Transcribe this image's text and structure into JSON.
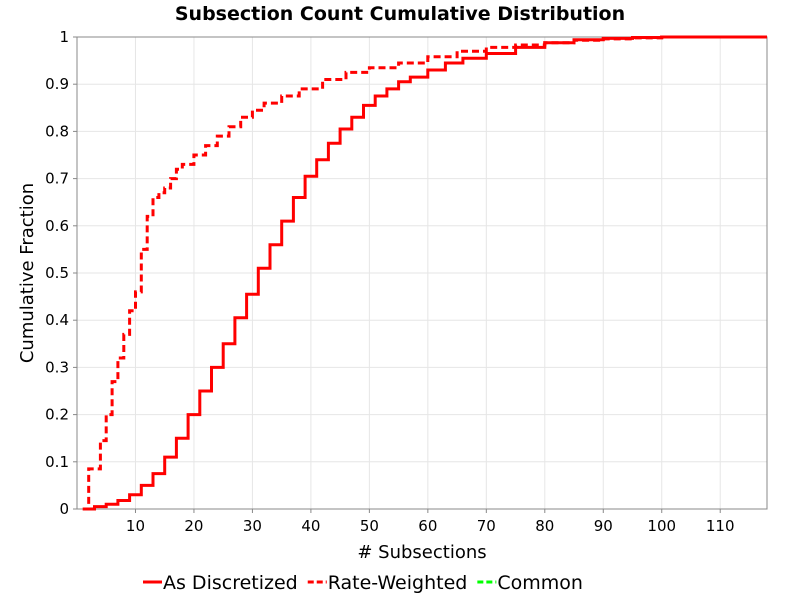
{
  "chart_data": {
    "type": "line",
    "title": "Subsection Count Cumulative Distribution",
    "xlabel": "# Subsections",
    "ylabel": "Cumulative Fraction",
    "xlim": [
      0,
      118
    ],
    "ylim": [
      0,
      1
    ],
    "x_ticks": [
      10,
      20,
      30,
      40,
      50,
      60,
      70,
      80,
      90,
      100,
      110
    ],
    "y_ticks": [
      0,
      0.1,
      0.2,
      0.3,
      0.4,
      0.5,
      0.6,
      0.7,
      0.8,
      0.9,
      1
    ],
    "grid": true,
    "legend_placement": "bottom",
    "step": true,
    "series": [
      {
        "name": "As Discretized",
        "color": "#ff0000",
        "style": "solid",
        "x": [
          1,
          3,
          5,
          7,
          9,
          11,
          13,
          15,
          17,
          19,
          21,
          23,
          25,
          27,
          29,
          31,
          33,
          35,
          37,
          39,
          41,
          43,
          45,
          47,
          49,
          51,
          53,
          55,
          57,
          60,
          63,
          66,
          70,
          75,
          80,
          85,
          90,
          95,
          100,
          110,
          118
        ],
        "y": [
          0.0,
          0.005,
          0.01,
          0.018,
          0.03,
          0.05,
          0.075,
          0.11,
          0.15,
          0.2,
          0.25,
          0.3,
          0.35,
          0.405,
          0.455,
          0.51,
          0.56,
          0.61,
          0.66,
          0.705,
          0.74,
          0.775,
          0.805,
          0.83,
          0.855,
          0.875,
          0.89,
          0.905,
          0.915,
          0.93,
          0.945,
          0.955,
          0.965,
          0.978,
          0.988,
          0.994,
          0.997,
          0.999,
          1.0,
          1.0,
          1.0
        ]
      },
      {
        "name": "Rate-Weighted",
        "color": "#ff0000",
        "style": "dashed",
        "x": [
          1,
          2,
          4,
          5,
          6,
          7,
          8,
          9,
          10,
          11,
          12,
          13,
          14,
          15,
          16,
          17,
          18,
          20,
          22,
          24,
          26,
          28,
          30,
          32,
          35,
          38,
          42,
          46,
          50,
          55,
          60,
          65,
          70,
          75,
          80,
          85,
          90,
          95,
          100,
          110,
          118
        ],
        "y": [
          0.0,
          0.085,
          0.145,
          0.2,
          0.27,
          0.32,
          0.37,
          0.42,
          0.46,
          0.55,
          0.62,
          0.66,
          0.67,
          0.68,
          0.7,
          0.72,
          0.73,
          0.75,
          0.77,
          0.79,
          0.81,
          0.83,
          0.845,
          0.86,
          0.875,
          0.89,
          0.91,
          0.925,
          0.935,
          0.945,
          0.958,
          0.97,
          0.978,
          0.983,
          0.988,
          0.993,
          0.996,
          0.998,
          1.0,
          1.0,
          1.0
        ]
      },
      {
        "name": "Common",
        "color": "#00ff00",
        "style": "dashed",
        "x": [],
        "y": []
      }
    ]
  }
}
